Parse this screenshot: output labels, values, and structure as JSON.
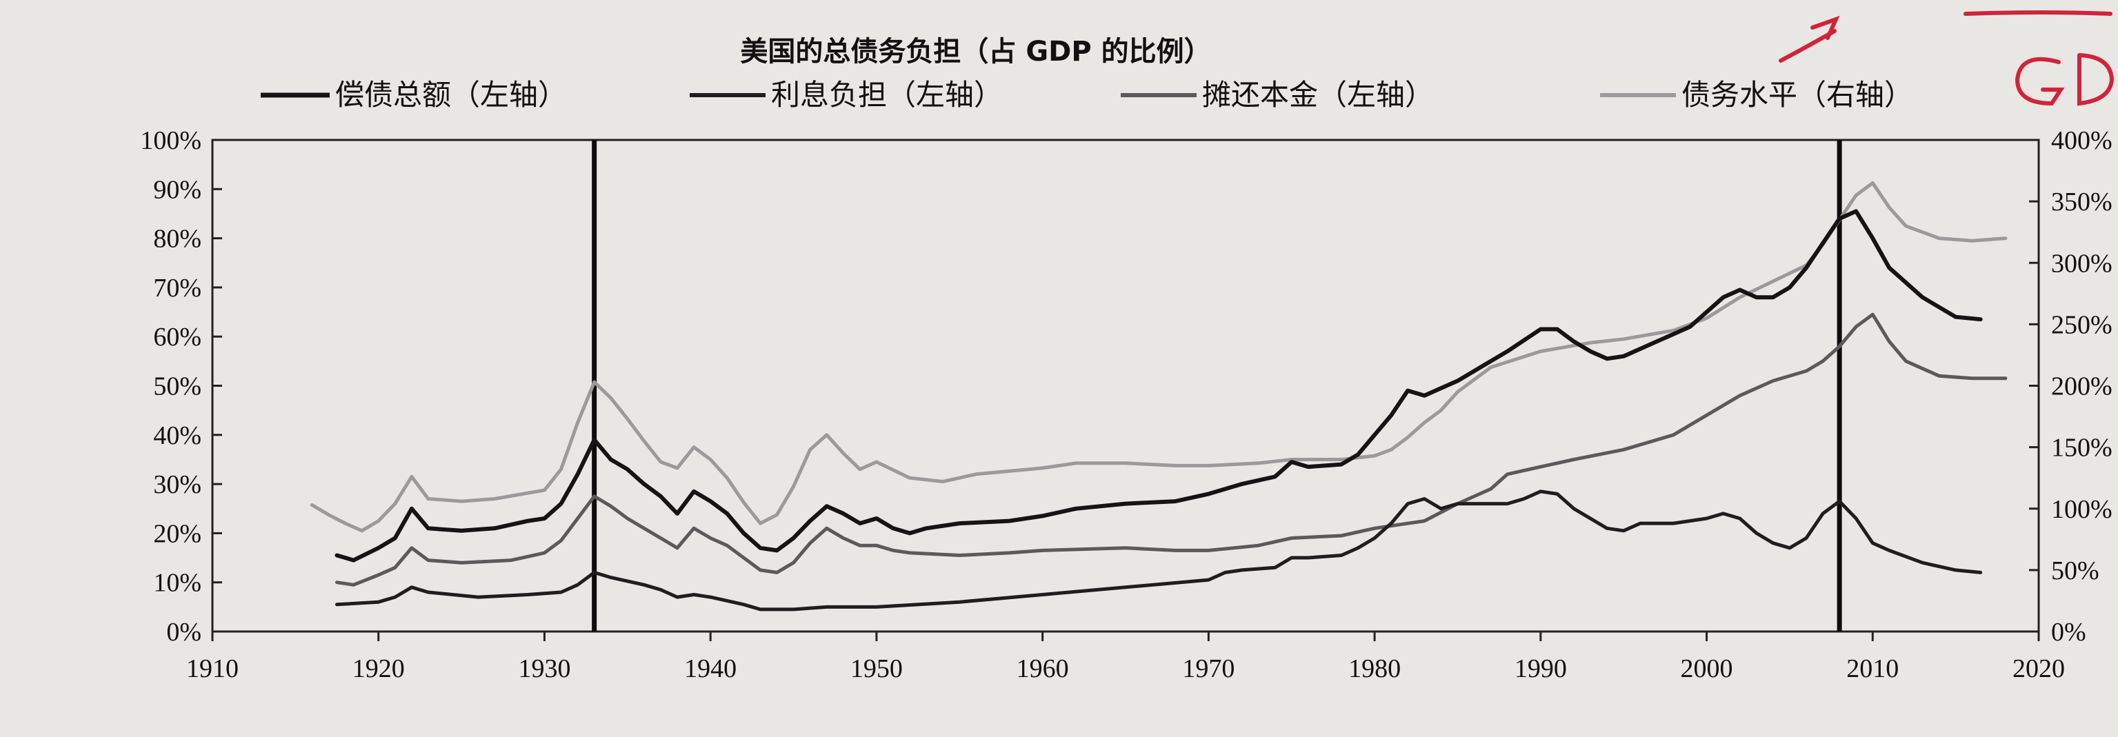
{
  "chart_data": {
    "type": "line",
    "title": "美国的总债务负担（占 GDP 的比例）",
    "x_ticks": [
      "1910",
      "1920",
      "1930",
      "1940",
      "1950",
      "1960",
      "1970",
      "1980",
      "1990",
      "2000",
      "2010",
      "2020"
    ],
    "xlim": [
      1910,
      2020
    ],
    "y_left_ticks": [
      "0%",
      "10%",
      "20%",
      "30%",
      "40%",
      "50%",
      "60%",
      "70%",
      "80%",
      "90%",
      "100%"
    ],
    "ylim_left": [
      0,
      100
    ],
    "y_right_ticks": [
      "0%",
      "50%",
      "100%",
      "150%",
      "200%",
      "250%",
      "300%",
      "350%",
      "400%"
    ],
    "ylim_right": [
      0,
      400
    ],
    "vertical_markers": [
      1933,
      2008
    ],
    "grid": false,
    "legend_position": "top",
    "series": [
      {
        "name": "偿债总额（左轴）",
        "axis": "left",
        "color": "#141414",
        "width": 6,
        "points": [
          [
            1917.5,
            15.5
          ],
          [
            1918.5,
            14.5
          ],
          [
            1920,
            17
          ],
          [
            1921,
            19
          ],
          [
            1922,
            25
          ],
          [
            1923,
            21
          ],
          [
            1925,
            20.5
          ],
          [
            1927,
            21
          ],
          [
            1929,
            22.5
          ],
          [
            1930,
            23
          ],
          [
            1931,
            26
          ],
          [
            1932,
            32
          ],
          [
            1933,
            39
          ],
          [
            1934,
            35
          ],
          [
            1935,
            33
          ],
          [
            1936,
            30
          ],
          [
            1937,
            27.5
          ],
          [
            1938,
            24
          ],
          [
            1939,
            28.5
          ],
          [
            1940,
            26.5
          ],
          [
            1941,
            24
          ],
          [
            1942,
            20
          ],
          [
            1943,
            17
          ],
          [
            1944,
            16.5
          ],
          [
            1945,
            19
          ],
          [
            1946,
            22.5
          ],
          [
            1947,
            25.5
          ],
          [
            1948,
            24
          ],
          [
            1949,
            22
          ],
          [
            1950,
            23
          ],
          [
            1951,
            21
          ],
          [
            1952,
            20
          ],
          [
            1953,
            21
          ],
          [
            1955,
            22
          ],
          [
            1958,
            22.5
          ],
          [
            1960,
            23.5
          ],
          [
            1962,
            25
          ],
          [
            1965,
            26
          ],
          [
            1968,
            26.5
          ],
          [
            1970,
            28
          ],
          [
            1972,
            30
          ],
          [
            1974,
            31.5
          ],
          [
            1975,
            34.5
          ],
          [
            1976,
            33.5
          ],
          [
            1978,
            34
          ],
          [
            1979,
            36
          ],
          [
            1980,
            40
          ],
          [
            1981,
            44
          ],
          [
            1982,
            49
          ],
          [
            1983,
            48
          ],
          [
            1985,
            51
          ],
          [
            1987,
            55
          ],
          [
            1988,
            57
          ],
          [
            1990,
            61.5
          ],
          [
            1991,
            61.5
          ],
          [
            1992,
            59
          ],
          [
            1993,
            57
          ],
          [
            1994,
            55.5
          ],
          [
            1995,
            56
          ],
          [
            1996,
            57.5
          ],
          [
            1997,
            59
          ],
          [
            1998,
            60.5
          ],
          [
            1999,
            62
          ],
          [
            2000,
            65
          ],
          [
            2001,
            68
          ],
          [
            2002,
            69.5
          ],
          [
            2003,
            68
          ],
          [
            2004,
            68
          ],
          [
            2005,
            70
          ],
          [
            2006,
            74
          ],
          [
            2007,
            79
          ],
          [
            2008,
            84
          ],
          [
            2009,
            85.5
          ],
          [
            2010,
            80
          ],
          [
            2011,
            74
          ],
          [
            2013,
            68
          ],
          [
            2015,
            64
          ],
          [
            2016.5,
            63.5
          ]
        ]
      },
      {
        "name": "利息负担（左轴）",
        "axis": "left",
        "color": "#1e1e1e",
        "width": 5,
        "points": [
          [
            1917.5,
            5.5
          ],
          [
            1920,
            6
          ],
          [
            1921,
            7
          ],
          [
            1922,
            9
          ],
          [
            1923,
            8
          ],
          [
            1926,
            7
          ],
          [
            1929,
            7.5
          ],
          [
            1931,
            8
          ],
          [
            1932,
            9.5
          ],
          [
            1933,
            12
          ],
          [
            1934,
            11
          ],
          [
            1936,
            9.5
          ],
          [
            1937,
            8.5
          ],
          [
            1938,
            7
          ],
          [
            1939,
            7.5
          ],
          [
            1940,
            7
          ],
          [
            1942,
            5.5
          ],
          [
            1943,
            4.5
          ],
          [
            1945,
            4.5
          ],
          [
            1947,
            5
          ],
          [
            1950,
            5
          ],
          [
            1955,
            6
          ],
          [
            1960,
            7.5
          ],
          [
            1965,
            9
          ],
          [
            1970,
            10.5
          ],
          [
            1971,
            12
          ],
          [
            1972,
            12.5
          ],
          [
            1974,
            13
          ],
          [
            1975,
            15
          ],
          [
            1976,
            15
          ],
          [
            1978,
            15.5
          ],
          [
            1979,
            17
          ],
          [
            1980,
            19
          ],
          [
            1981,
            22
          ],
          [
            1982,
            26
          ],
          [
            1983,
            27
          ],
          [
            1984,
            25
          ],
          [
            1985,
            26
          ],
          [
            1987,
            26
          ],
          [
            1988,
            26
          ],
          [
            1989,
            27
          ],
          [
            1990,
            28.5
          ],
          [
            1991,
            28
          ],
          [
            1992,
            25
          ],
          [
            1994,
            21
          ],
          [
            1995,
            20.5
          ],
          [
            1996,
            22
          ],
          [
            1998,
            22
          ],
          [
            2000,
            23
          ],
          [
            2001,
            24
          ],
          [
            2002,
            23
          ],
          [
            2003,
            20
          ],
          [
            2004,
            18
          ],
          [
            2005,
            17
          ],
          [
            2006,
            19
          ],
          [
            2007,
            24
          ],
          [
            2008,
            26.5
          ],
          [
            2009,
            23
          ],
          [
            2010,
            18
          ],
          [
            2011,
            16.5
          ],
          [
            2013,
            14
          ],
          [
            2015,
            12.5
          ],
          [
            2016.5,
            12
          ]
        ]
      },
      {
        "name": "摊还本金（左轴）",
        "axis": "left",
        "color": "#5a5a5a",
        "width": 5,
        "points": [
          [
            1917.5,
            10
          ],
          [
            1918.5,
            9.5
          ],
          [
            1920,
            11.5
          ],
          [
            1921,
            13
          ],
          [
            1922,
            17
          ],
          [
            1923,
            14.5
          ],
          [
            1925,
            14
          ],
          [
            1928,
            14.5
          ],
          [
            1930,
            16
          ],
          [
            1931,
            18.5
          ],
          [
            1932,
            23
          ],
          [
            1933,
            27.5
          ],
          [
            1934,
            25.5
          ],
          [
            1935,
            23
          ],
          [
            1936,
            21
          ],
          [
            1937,
            19
          ],
          [
            1938,
            17
          ],
          [
            1939,
            21
          ],
          [
            1940,
            19
          ],
          [
            1941,
            17.5
          ],
          [
            1942,
            15
          ],
          [
            1943,
            12.5
          ],
          [
            1944,
            12
          ],
          [
            1945,
            14
          ],
          [
            1946,
            18
          ],
          [
            1947,
            21
          ],
          [
            1948,
            19
          ],
          [
            1949,
            17.5
          ],
          [
            1950,
            17.5
          ],
          [
            1951,
            16.5
          ],
          [
            1952,
            16
          ],
          [
            1955,
            15.5
          ],
          [
            1958,
            16
          ],
          [
            1960,
            16.5
          ],
          [
            1965,
            17
          ],
          [
            1968,
            16.5
          ],
          [
            1970,
            16.5
          ],
          [
            1973,
            17.5
          ],
          [
            1975,
            19
          ],
          [
            1978,
            19.5
          ],
          [
            1980,
            21
          ],
          [
            1983,
            22.5
          ],
          [
            1985,
            26
          ],
          [
            1987,
            29
          ],
          [
            1988,
            32
          ],
          [
            1990,
            33.5
          ],
          [
            1992,
            35
          ],
          [
            1995,
            37
          ],
          [
            1998,
            40
          ],
          [
            2000,
            44
          ],
          [
            2002,
            48
          ],
          [
            2004,
            51
          ],
          [
            2006,
            53
          ],
          [
            2007,
            55
          ],
          [
            2008,
            58
          ],
          [
            2009,
            62
          ],
          [
            2010,
            64.5
          ],
          [
            2011,
            59
          ],
          [
            2012,
            55
          ],
          [
            2014,
            52
          ],
          [
            2016,
            51.5
          ],
          [
            2018,
            51.5
          ]
        ]
      },
      {
        "name": "债务水平（右轴）",
        "axis": "right",
        "color": "#9a9a9a",
        "width": 5,
        "points": [
          [
            1916,
            103
          ],
          [
            1917,
            95
          ],
          [
            1918,
            88
          ],
          [
            1919,
            82
          ],
          [
            1920,
            90
          ],
          [
            1921,
            104
          ],
          [
            1922,
            126
          ],
          [
            1923,
            108
          ],
          [
            1925,
            106
          ],
          [
            1927,
            108
          ],
          [
            1930,
            115
          ],
          [
            1931,
            132
          ],
          [
            1932,
            170
          ],
          [
            1933,
            203
          ],
          [
            1934,
            190
          ],
          [
            1935,
            173
          ],
          [
            1936,
            155
          ],
          [
            1937,
            138
          ],
          [
            1938,
            133
          ],
          [
            1939,
            150
          ],
          [
            1940,
            140
          ],
          [
            1941,
            125
          ],
          [
            1942,
            105
          ],
          [
            1943,
            88
          ],
          [
            1944,
            95
          ],
          [
            1945,
            118
          ],
          [
            1946,
            148
          ],
          [
            1947,
            160
          ],
          [
            1948,
            145
          ],
          [
            1949,
            132
          ],
          [
            1950,
            138
          ],
          [
            1952,
            125
          ],
          [
            1954,
            122
          ],
          [
            1956,
            128
          ],
          [
            1960,
            133
          ],
          [
            1962,
            137
          ],
          [
            1965,
            137
          ],
          [
            1968,
            135
          ],
          [
            1970,
            135
          ],
          [
            1973,
            137
          ],
          [
            1975,
            140
          ],
          [
            1978,
            140
          ],
          [
            1980,
            143
          ],
          [
            1981,
            148
          ],
          [
            1982,
            158
          ],
          [
            1983,
            170
          ],
          [
            1984,
            180
          ],
          [
            1985,
            195
          ],
          [
            1987,
            215
          ],
          [
            1990,
            228
          ],
          [
            1993,
            235
          ],
          [
            1995,
            238
          ],
          [
            1998,
            245
          ],
          [
            2000,
            255
          ],
          [
            2002,
            272
          ],
          [
            2004,
            285
          ],
          [
            2006,
            298
          ],
          [
            2007,
            315
          ],
          [
            2008,
            335
          ],
          [
            2009,
            355
          ],
          [
            2010,
            365
          ],
          [
            2011,
            345
          ],
          [
            2012,
            330
          ],
          [
            2014,
            320
          ],
          [
            2016,
            318
          ],
          [
            2018,
            320
          ]
        ]
      }
    ]
  }
}
